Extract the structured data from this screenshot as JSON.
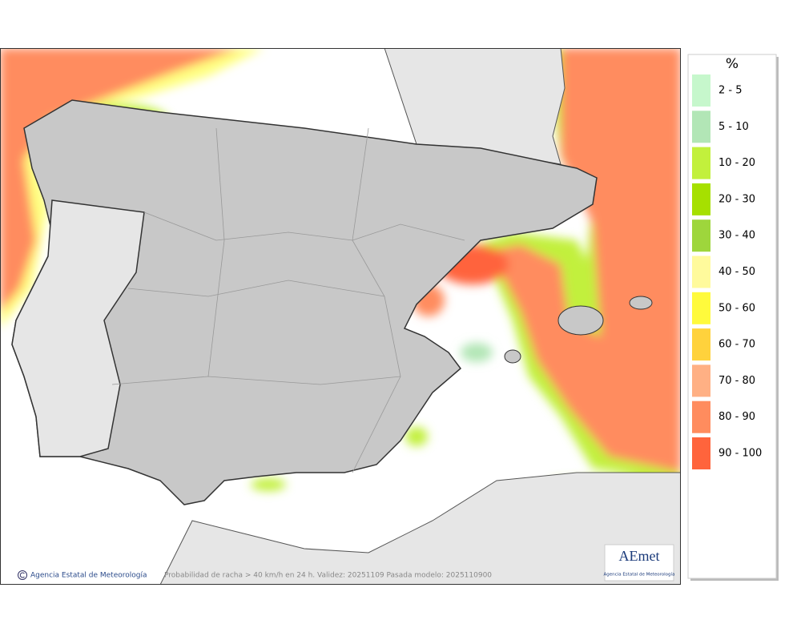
{
  "legend": {
    "title": "%",
    "items": [
      {
        "label": "2 - 5",
        "color": "#c6f7cc"
      },
      {
        "label": "5 - 10",
        "color": "#b2e6b6"
      },
      {
        "label": "10 - 20",
        "color": "#c2f03c"
      },
      {
        "label": "20 - 30",
        "color": "#a6e000"
      },
      {
        "label": "30 - 40",
        "color": "#9ed63c"
      },
      {
        "label": "40 - 50",
        "color": "#fffa9c"
      },
      {
        "label": "50 - 60",
        "color": "#fffa3c"
      },
      {
        "label": "60 - 70",
        "color": "#ffd23c"
      },
      {
        "label": "70 - 80",
        "color": "#ffb084"
      },
      {
        "label": "80 - 90",
        "color": "#ff8c5e"
      },
      {
        "label": "90 - 100",
        "color": "#ff643c"
      }
    ]
  },
  "footer": {
    "credit": "Agencia Estatal de Meteorología",
    "caption": "Probabilidad de racha > 40 km/h en 24 h. Validez: 20251109 Pasada modelo: 2025110900"
  },
  "logo": {
    "brand": "AEmet",
    "subtitle": "Agencia Estatal de Meteorología"
  }
}
